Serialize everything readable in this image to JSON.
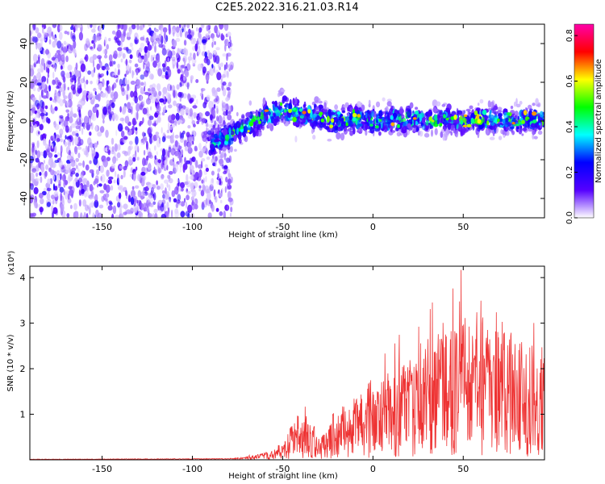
{
  "title": "C2E5.2022.316.21.03.R14",
  "chart_data": [
    {
      "type": "heatmap",
      "title": "C2E5.2022.316.21.03.R14",
      "xlabel": "Height of straight line (km)",
      "ylabel": "Frequency (Hz)",
      "xlim": [
        -190,
        95
      ],
      "ylim": [
        -50,
        50
      ],
      "x_ticks": [
        -150,
        -100,
        -50,
        0,
        50
      ],
      "y_ticks": [
        -40,
        -20,
        0,
        20,
        40
      ],
      "colorbar": {
        "label": "Normalized spectral amplitude",
        "range": [
          0.0,
          0.85
        ],
        "ticks": [
          0.0,
          0.2,
          0.4,
          0.6,
          0.8
        ],
        "colors": [
          "#ffffff",
          "#5500ff",
          "#0000ff",
          "#00ffff",
          "#00ff00",
          "#ffff00",
          "#ff0000",
          "#ff00aa"
        ]
      },
      "noise_region": {
        "x": [
          -190,
          -78
        ],
        "amplitude": 0.12
      },
      "ridge": {
        "x": [
          -90,
          -80,
          -70,
          -60,
          -55,
          -50,
          -45,
          -40,
          -30,
          -20,
          -10,
          0,
          10,
          20,
          30,
          40,
          50,
          60,
          70,
          80,
          90
        ],
        "y": [
          -12,
          -8,
          -2,
          2,
          4,
          6,
          5,
          4,
          2,
          0,
          1,
          0,
          1,
          1,
          0,
          1,
          0,
          1,
          0,
          0,
          1
        ]
      }
    },
    {
      "type": "line",
      "xlabel": "Height of straight line (km)",
      "ylabel": "SNR (10 * v/v)",
      "y_multiplier": "(x10⁴)",
      "xlim": [
        -190,
        95
      ],
      "ylim": [
        0,
        4.25
      ],
      "x_ticks": [
        -150,
        -100,
        -50,
        0,
        50
      ],
      "y_ticks": [
        1,
        2,
        3,
        4
      ],
      "color": "#ee3333",
      "envelope": {
        "x": [
          -190,
          -80,
          -65,
          -55,
          -48,
          -45,
          -40,
          -35,
          -30,
          -25,
          -22,
          -20,
          -10,
          0,
          10,
          20,
          30,
          40,
          50,
          60,
          70,
          80,
          90,
          95
        ],
        "mean": [
          0.01,
          0.02,
          0.05,
          0.12,
          0.25,
          0.4,
          0.55,
          0.5,
          0.25,
          0.35,
          0.55,
          0.6,
          0.7,
          0.85,
          1.0,
          1.2,
          1.45,
          1.5,
          1.55,
          1.5,
          1.45,
          1.4,
          1.35,
          1.3
        ],
        "peak": [
          0.03,
          0.04,
          0.15,
          0.35,
          0.7,
          1.1,
          1.4,
          1.0,
          0.6,
          0.9,
          1.3,
          1.7,
          2.1,
          2.4,
          2.8,
          3.2,
          3.4,
          4.2,
          4.2,
          3.8,
          3.6,
          3.4,
          3.2,
          2.9
        ]
      }
    }
  ]
}
